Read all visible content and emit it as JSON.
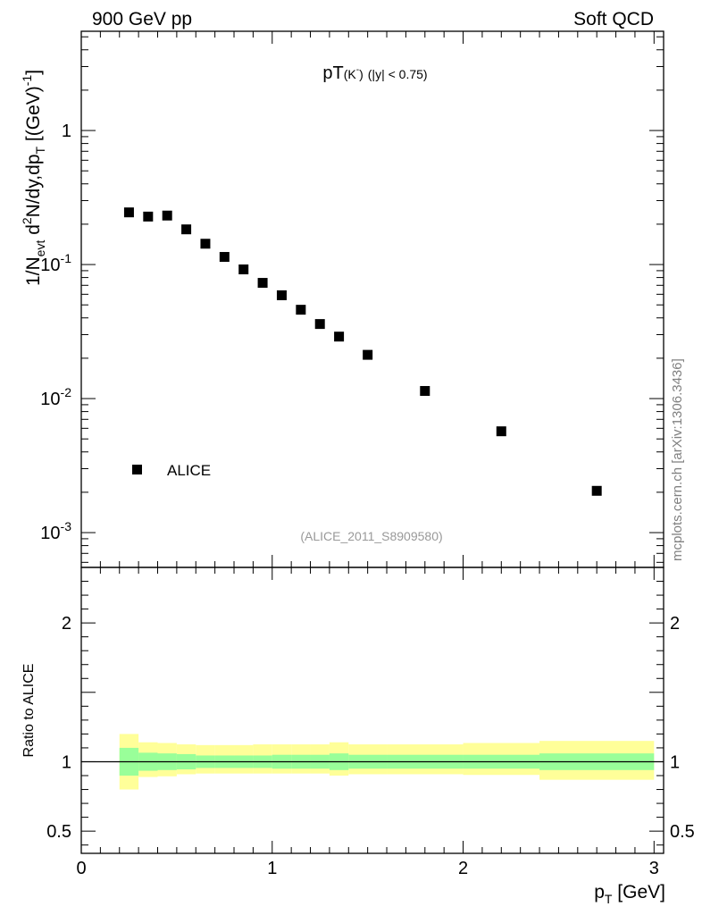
{
  "header": {
    "left": "900 GeV pp",
    "right": "Soft QCD"
  },
  "side_label": "mcplots.cern.ch [arXiv:1306.3436]",
  "analysis_tag": "(ALICE_2011_S8909580)",
  "chart_data": [
    {
      "type": "scatter",
      "panel": "main",
      "title": {
        "main": "pT",
        "particle": "(K",
        "particle_sup": "-",
        "particle_close": ")",
        "cut": "(|y| < 0.75)"
      },
      "ylabel": {
        "a": "1/N",
        "a_sub": "evt",
        "b": " d",
        "b_sup": "2",
        "c": "N/dy,dp",
        "c_sub": "T",
        "d": " [(GeV)",
        "d_sup": "-1",
        "e": "]"
      },
      "yscale": "log",
      "xlim": [
        0,
        3.05
      ],
      "ylim": [
        0.00055,
        5.5
      ],
      "ytick_labels": [
        {
          "value": 1,
          "base": "1",
          "exp": ""
        },
        {
          "value": 0.1,
          "base": "10",
          "exp": "-1"
        },
        {
          "value": 0.01,
          "base": "10",
          "exp": "-2"
        },
        {
          "value": 0.001,
          "base": "10",
          "exp": "-3"
        }
      ],
      "series": [
        {
          "name": "ALICE",
          "marker": "square",
          "color": "#000000",
          "x": [
            0.25,
            0.35,
            0.45,
            0.55,
            0.65,
            0.75,
            0.85,
            0.95,
            1.05,
            1.15,
            1.25,
            1.35,
            1.5,
            1.8,
            2.2,
            2.7
          ],
          "y": [
            0.245,
            0.228,
            0.232,
            0.183,
            0.143,
            0.114,
            0.092,
            0.073,
            0.059,
            0.046,
            0.036,
            0.029,
            0.0212,
            0.0114,
            0.0057,
            0.00205
          ]
        }
      ],
      "legend": {
        "label": "ALICE",
        "position": "lower-left"
      }
    },
    {
      "type": "area",
      "panel": "ratio",
      "ylabel": "Ratio to ALICE",
      "xlabel": {
        "main": "p",
        "sub": "T",
        "unit": " [GeV]"
      },
      "xlim": [
        0,
        3.05
      ],
      "ylim": [
        0.34,
        2.4
      ],
      "xtick_labels": [
        {
          "value": 0,
          "label": "0"
        },
        {
          "value": 1,
          "label": "1"
        },
        {
          "value": 2,
          "label": "2"
        },
        {
          "value": 3,
          "label": "3"
        }
      ],
      "ytick_labels": [
        {
          "value": 0.5,
          "label": "0.5"
        },
        {
          "value": 1,
          "label": "1"
        },
        {
          "value": 2,
          "label": "2"
        }
      ],
      "reference_line": 1.0,
      "bands": {
        "bins": [
          [
            0.2,
            0.3
          ],
          [
            0.3,
            0.4
          ],
          [
            0.4,
            0.5
          ],
          [
            0.5,
            0.6
          ],
          [
            0.6,
            0.7
          ],
          [
            0.7,
            0.8
          ],
          [
            0.8,
            0.9
          ],
          [
            0.9,
            1.0
          ],
          [
            1.0,
            1.1
          ],
          [
            1.1,
            1.2
          ],
          [
            1.2,
            1.3
          ],
          [
            1.3,
            1.4
          ],
          [
            1.4,
            1.6
          ],
          [
            1.6,
            2.0
          ],
          [
            2.0,
            2.4
          ],
          [
            2.4,
            3.0
          ]
        ],
        "stat": {
          "color": "#99ff99",
          "lo": [
            0.9,
            0.935,
            0.94,
            0.945,
            0.955,
            0.955,
            0.955,
            0.955,
            0.95,
            0.95,
            0.95,
            0.94,
            0.95,
            0.95,
            0.95,
            0.94
          ],
          "hi": [
            1.1,
            1.065,
            1.06,
            1.055,
            1.045,
            1.045,
            1.045,
            1.045,
            1.05,
            1.05,
            1.05,
            1.06,
            1.05,
            1.05,
            1.05,
            1.06
          ]
        },
        "total": {
          "color": "#ffff99",
          "lo": [
            0.8,
            0.89,
            0.895,
            0.91,
            0.915,
            0.915,
            0.915,
            0.915,
            0.915,
            0.915,
            0.915,
            0.9,
            0.91,
            0.91,
            0.905,
            0.87
          ],
          "hi": [
            1.2,
            1.14,
            1.135,
            1.125,
            1.12,
            1.12,
            1.12,
            1.125,
            1.125,
            1.125,
            1.125,
            1.14,
            1.125,
            1.125,
            1.135,
            1.15
          ]
        }
      }
    }
  ]
}
